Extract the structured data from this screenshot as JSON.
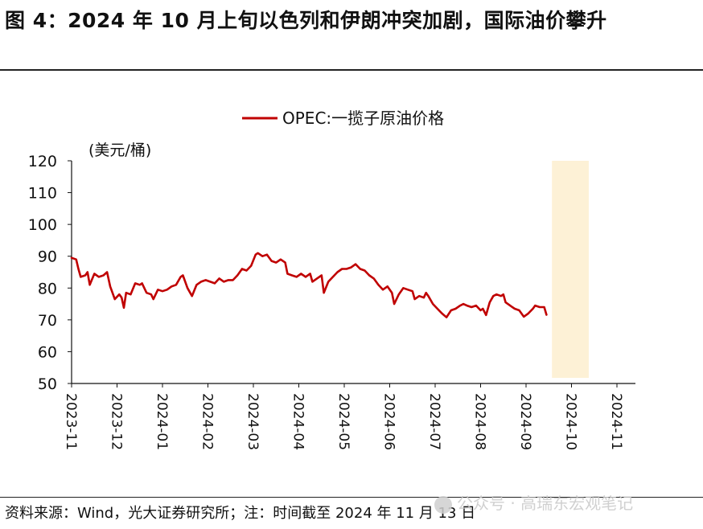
{
  "figure": {
    "title": "图 4：2024 年 10 月上旬以色列和伊朗冲突加剧，国际油价攀升",
    "source": "资料来源：Wind，光大证券研究所；注：时间截至 2024 年 11 月 13 日",
    "watermark": "公众号 · 高瑞东宏观笔记"
  },
  "colors": {
    "series": "#c00000",
    "highlight_series": "#e07a5f",
    "highlight_band": "#fdf1d6",
    "axis": "#111111"
  },
  "chart_data": {
    "type": "line",
    "title": "",
    "ylabel": "(美元/桶)",
    "xlabel": "",
    "ylim": [
      50,
      120
    ],
    "yticks": [
      50,
      60,
      70,
      80,
      90,
      100,
      110,
      120
    ],
    "grid": false,
    "legend_position": "top-center",
    "categories": [
      "2023-11",
      "2023-12",
      "2024-01",
      "2024-02",
      "2024-03",
      "2024-04",
      "2024-05",
      "2024-06",
      "2024-07",
      "2024-08",
      "2024-09",
      "2024-10",
      "2024-11"
    ],
    "x_end_month": 12.45,
    "highlight": {
      "from_month": 10.57,
      "to_month": 11.38
    },
    "series": [
      {
        "name": "OPEC:一揽子原油价格",
        "points": [
          [
            0.0,
            89.5
          ],
          [
            0.1,
            89.0
          ],
          [
            0.15,
            86.0
          ],
          [
            0.2,
            83.5
          ],
          [
            0.3,
            84.0
          ],
          [
            0.35,
            85.0
          ],
          [
            0.4,
            81.0
          ],
          [
            0.5,
            84.5
          ],
          [
            0.6,
            83.5
          ],
          [
            0.7,
            84.0
          ],
          [
            0.78,
            85.0
          ],
          [
            0.85,
            80.5
          ],
          [
            0.95,
            76.5
          ],
          [
            1.05,
            78.0
          ],
          [
            1.1,
            77.0
          ],
          [
            1.15,
            73.8
          ],
          [
            1.2,
            78.5
          ],
          [
            1.3,
            78.0
          ],
          [
            1.4,
            81.5
          ],
          [
            1.5,
            81.0
          ],
          [
            1.55,
            81.5
          ],
          [
            1.65,
            78.5
          ],
          [
            1.75,
            78.0
          ],
          [
            1.8,
            76.5
          ],
          [
            1.9,
            79.5
          ],
          [
            2.0,
            79.0
          ],
          [
            2.1,
            79.5
          ],
          [
            2.2,
            80.5
          ],
          [
            2.3,
            81.0
          ],
          [
            2.4,
            83.5
          ],
          [
            2.45,
            84.0
          ],
          [
            2.55,
            80.0
          ],
          [
            2.65,
            77.5
          ],
          [
            2.75,
            81.0
          ],
          [
            2.85,
            82.0
          ],
          [
            2.95,
            82.5
          ],
          [
            3.05,
            82.0
          ],
          [
            3.15,
            81.5
          ],
          [
            3.25,
            83.0
          ],
          [
            3.35,
            82.0
          ],
          [
            3.45,
            82.5
          ],
          [
            3.55,
            82.5
          ],
          [
            3.65,
            84.0
          ],
          [
            3.75,
            86.0
          ],
          [
            3.85,
            85.5
          ],
          [
            3.95,
            87.0
          ],
          [
            4.05,
            90.5
          ],
          [
            4.1,
            91.0
          ],
          [
            4.2,
            90.0
          ],
          [
            4.3,
            90.5
          ],
          [
            4.4,
            88.5
          ],
          [
            4.5,
            88.0
          ],
          [
            4.6,
            89.0
          ],
          [
            4.7,
            88.0
          ],
          [
            4.75,
            84.5
          ],
          [
            4.85,
            84.0
          ],
          [
            4.95,
            83.5
          ],
          [
            5.05,
            84.5
          ],
          [
            5.15,
            83.5
          ],
          [
            5.25,
            84.5
          ],
          [
            5.3,
            82.0
          ],
          [
            5.4,
            83.0
          ],
          [
            5.5,
            84.0
          ],
          [
            5.55,
            78.5
          ],
          [
            5.65,
            82.0
          ],
          [
            5.75,
            83.5
          ],
          [
            5.85,
            85.0
          ],
          [
            5.95,
            86.0
          ],
          [
            6.05,
            86.0
          ],
          [
            6.15,
            86.5
          ],
          [
            6.25,
            87.5
          ],
          [
            6.35,
            86.0
          ],
          [
            6.45,
            85.5
          ],
          [
            6.55,
            84.0
          ],
          [
            6.65,
            83.0
          ],
          [
            6.75,
            81.0
          ],
          [
            6.85,
            79.5
          ],
          [
            6.95,
            80.5
          ],
          [
            7.05,
            78.5
          ],
          [
            7.1,
            75.0
          ],
          [
            7.2,
            78.0
          ],
          [
            7.3,
            80.0
          ],
          [
            7.4,
            79.5
          ],
          [
            7.5,
            79.0
          ],
          [
            7.55,
            76.5
          ],
          [
            7.65,
            77.5
          ],
          [
            7.75,
            77.0
          ],
          [
            7.8,
            78.5
          ],
          [
            7.85,
            77.5
          ],
          [
            7.95,
            75.0
          ],
          [
            8.05,
            73.5
          ],
          [
            8.15,
            72.0
          ],
          [
            8.25,
            70.8
          ],
          [
            8.35,
            73.0
          ],
          [
            8.45,
            73.5
          ],
          [
            8.55,
            74.5
          ],
          [
            8.62,
            75.0
          ],
          [
            8.7,
            74.5
          ],
          [
            8.8,
            74.0
          ],
          [
            8.9,
            74.5
          ],
          [
            9.0,
            73.0
          ],
          [
            9.05,
            73.5
          ],
          [
            9.12,
            71.5
          ],
          [
            9.2,
            75.5
          ],
          [
            9.28,
            77.5
          ],
          [
            9.35,
            78.0
          ],
          [
            9.45,
            77.5
          ],
          [
            9.5,
            78.0
          ],
          [
            9.55,
            75.5
          ],
          [
            9.65,
            74.5
          ],
          [
            9.75,
            73.5
          ],
          [
            9.85,
            73.0
          ],
          [
            9.95,
            71.0
          ],
          [
            10.05,
            72.0
          ],
          [
            10.15,
            73.5
          ],
          [
            10.2,
            74.5
          ],
          [
            10.3,
            74.0
          ],
          [
            10.4,
            74.0
          ],
          [
            10.45,
            71.6
          ]
        ]
      }
    ]
  }
}
